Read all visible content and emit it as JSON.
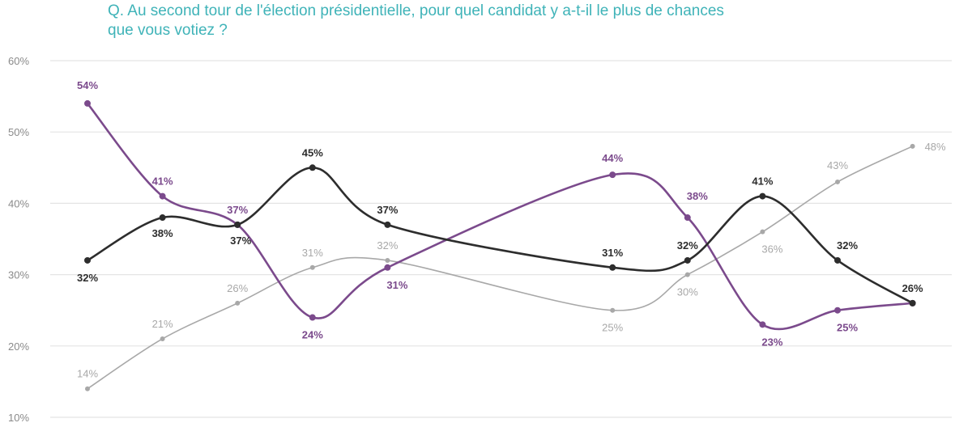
{
  "chart_data": {
    "type": "line",
    "title": "Q. Au second tour de l'élection présidentielle, pour quel candidat y a-t-il le plus de chances que vous votiez ?",
    "title_lines": [
      "Q. Au second tour de l'élection présidentielle, pour quel candidat y a-t-il le plus de chances",
      "que vous votiez ?"
    ],
    "xlabel": "",
    "ylabel": "",
    "ylim": [
      10,
      60
    ],
    "yticks": [
      10,
      20,
      30,
      40,
      50,
      60
    ],
    "ytick_labels": [
      "10%",
      "20%",
      "30%",
      "40%",
      "50%",
      "60%"
    ],
    "grid": true,
    "legend": "none",
    "x": [
      0,
      1,
      2,
      3,
      4,
      7,
      8,
      9,
      10,
      11
    ],
    "categories": [],
    "series": [
      {
        "name": "purple",
        "color": "#7b4a8c",
        "values": [
          54,
          41,
          37,
          24,
          31,
          44,
          38,
          23,
          25,
          26
        ],
        "labels": [
          "54%",
          "41%",
          "37%",
          "24%",
          "31%",
          "44%",
          "38%",
          "23%",
          "25%",
          ""
        ]
      },
      {
        "name": "black",
        "color": "#2d2d2d",
        "values": [
          32,
          38,
          37,
          45,
          37,
          31,
          32,
          41,
          32,
          26
        ],
        "labels": [
          "32%",
          "38%",
          "37%",
          "45%",
          "37%",
          "31%",
          "32%",
          "41%",
          "32%",
          "26%"
        ]
      },
      {
        "name": "gray",
        "color": "#a8a8a8",
        "values": [
          14,
          21,
          26,
          31,
          32,
          25,
          30,
          36,
          43,
          48
        ],
        "labels": [
          "14%",
          "21%",
          "26%",
          "31%",
          "32%",
          "25%",
          "30%",
          "36%",
          "43%",
          "48%"
        ]
      }
    ]
  }
}
